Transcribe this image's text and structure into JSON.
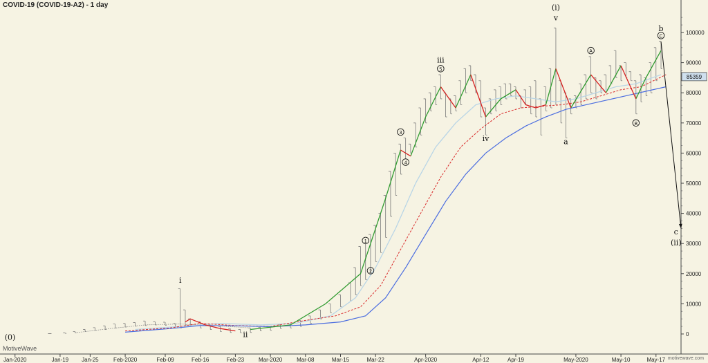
{
  "title": "COVID-19 (COVID-19-A2) - 1 day",
  "brand": "MotiveWave",
  "site": "motivewave.com",
  "price_label": "85359",
  "colors": {
    "background": "#f6f3e3",
    "bar": "#7a7a7a",
    "up_line": "#2f9a2f",
    "down_line": "#d62020",
    "ma_light": "#b9d5e6",
    "ma_dashed": "#d92a2a",
    "ma_blue": "#4b6de0",
    "price_box": "#cfe0ee"
  },
  "chart_data": {
    "type": "line",
    "title": "COVID-19 (COVID-19-A2) - 1 day",
    "ylim": [
      -5000,
      110000
    ],
    "xlim": [
      "2020-01-07",
      "2020-05-22"
    ],
    "yticks": [
      0,
      10000,
      20000,
      30000,
      40000,
      50000,
      60000,
      70000,
      80000,
      90000,
      100000
    ],
    "xticks": [
      {
        "date": "2020-01-10",
        "label": "Jan-2020"
      },
      {
        "date": "2020-01-19",
        "label": "Jan-19"
      },
      {
        "date": "2020-01-25",
        "label": "Jan-25"
      },
      {
        "date": "2020-02-01",
        "label": "Feb-2020"
      },
      {
        "date": "2020-02-09",
        "label": "Feb-09"
      },
      {
        "date": "2020-02-16",
        "label": "Feb-16"
      },
      {
        "date": "2020-02-23",
        "label": "Feb-23"
      },
      {
        "date": "2020-03-01",
        "label": "Mar-2020"
      },
      {
        "date": "2020-03-08",
        "label": "Mar-08"
      },
      {
        "date": "2020-03-15",
        "label": "Mar-15"
      },
      {
        "date": "2020-03-22",
        "label": "Mar-22"
      },
      {
        "date": "2020-04-01",
        "label": "Apr-2020"
      },
      {
        "date": "2020-04-12",
        "label": "Apr-12"
      },
      {
        "date": "2020-04-19",
        "label": "Apr-19"
      },
      {
        "date": "2020-05-01",
        "label": "May-2020"
      },
      {
        "date": "2020-05-10",
        "label": "May-10"
      },
      {
        "date": "2020-05-17",
        "label": "May-17"
      }
    ],
    "bars": [
      [
        "2020-01-17",
        100,
        100
      ],
      [
        "2020-01-20",
        200,
        400
      ],
      [
        "2020-01-22",
        400,
        800
      ],
      [
        "2020-01-24",
        800,
        1500
      ],
      [
        "2020-01-26",
        1200,
        2100
      ],
      [
        "2020-01-28",
        1500,
        2700
      ],
      [
        "2020-01-30",
        2000,
        3300
      ],
      [
        "2020-02-01",
        2300,
        3500
      ],
      [
        "2020-02-03",
        2600,
        3800
      ],
      [
        "2020-02-05",
        2800,
        4300
      ],
      [
        "2020-02-07",
        3000,
        4000
      ],
      [
        "2020-02-09",
        2900,
        3900
      ],
      [
        "2020-02-11",
        2500,
        3500
      ],
      [
        "2020-02-12",
        2000,
        15000
      ],
      [
        "2020-02-13",
        3000,
        8000
      ],
      [
        "2020-02-14",
        2500,
        5000
      ],
      [
        "2020-02-16",
        2000,
        4000
      ],
      [
        "2020-02-18",
        1500,
        3000
      ],
      [
        "2020-02-20",
        800,
        2500
      ],
      [
        "2020-02-22",
        500,
        1800
      ],
      [
        "2020-02-24",
        400,
        1500
      ],
      [
        "2020-02-26",
        500,
        2000
      ],
      [
        "2020-02-28",
        1000,
        2200
      ],
      [
        "2020-03-01",
        1200,
        2500
      ],
      [
        "2020-03-03",
        1800,
        3000
      ],
      [
        "2020-03-05",
        2000,
        3500
      ],
      [
        "2020-03-07",
        2500,
        4500
      ],
      [
        "2020-03-09",
        3500,
        6000
      ],
      [
        "2020-03-11",
        5000,
        8000
      ],
      [
        "2020-03-13",
        7000,
        10000
      ],
      [
        "2020-03-15",
        9000,
        13000
      ],
      [
        "2020-03-17",
        11000,
        17000
      ],
      [
        "2020-03-18",
        13000,
        22000
      ],
      [
        "2020-03-19",
        16000,
        29000
      ],
      [
        "2020-03-20",
        18000,
        30000
      ],
      [
        "2020-03-21",
        20000,
        33000
      ],
      [
        "2020-03-22",
        24000,
        36000
      ],
      [
        "2020-03-23",
        27000,
        40000
      ],
      [
        "2020-03-24",
        32000,
        46000
      ],
      [
        "2020-03-25",
        39000,
        54000
      ],
      [
        "2020-03-26",
        46000,
        60000
      ],
      [
        "2020-03-27",
        53000,
        63000
      ],
      [
        "2020-03-28",
        58000,
        65000
      ],
      [
        "2020-03-29",
        60000,
        63000
      ],
      [
        "2020-03-30",
        62000,
        70000
      ],
      [
        "2020-03-31",
        66000,
        75000
      ],
      [
        "2020-04-01",
        70000,
        78000
      ],
      [
        "2020-04-02",
        74000,
        80000
      ],
      [
        "2020-04-03",
        76000,
        82000
      ],
      [
        "2020-04-04",
        78000,
        86000
      ],
      [
        "2020-04-05",
        72000,
        80000
      ],
      [
        "2020-04-06",
        73000,
        78000
      ],
      [
        "2020-04-07",
        74000,
        79000
      ],
      [
        "2020-04-08",
        76000,
        84000
      ],
      [
        "2020-04-09",
        80000,
        88000
      ],
      [
        "2020-04-10",
        84000,
        89000
      ],
      [
        "2020-04-11",
        80000,
        86000
      ],
      [
        "2020-04-12",
        72000,
        84000
      ],
      [
        "2020-04-13",
        66000,
        75000
      ],
      [
        "2020-04-14",
        73000,
        78000
      ],
      [
        "2020-04-15",
        74000,
        81000
      ],
      [
        "2020-04-16",
        76000,
        82000
      ],
      [
        "2020-04-17",
        78000,
        83000
      ],
      [
        "2020-04-18",
        79000,
        83000
      ],
      [
        "2020-04-19",
        78000,
        82000
      ],
      [
        "2020-04-20",
        75000,
        79000
      ],
      [
        "2020-04-21",
        76000,
        81000
      ],
      [
        "2020-04-22",
        73000,
        82000
      ],
      [
        "2020-04-23",
        72000,
        84000
      ],
      [
        "2020-04-24",
        66000,
        78000
      ],
      [
        "2020-04-25",
        74000,
        82000
      ],
      [
        "2020-04-26",
        75000,
        88000
      ],
      [
        "2020-04-27",
        76000,
        101500
      ],
      [
        "2020-04-28",
        70000,
        84000
      ],
      [
        "2020-04-29",
        65000,
        80000
      ],
      [
        "2020-04-30",
        73000,
        78000
      ],
      [
        "2020-05-01",
        75000,
        79000
      ],
      [
        "2020-05-02",
        76000,
        83000
      ],
      [
        "2020-05-03",
        78000,
        86000
      ],
      [
        "2020-05-04",
        80000,
        92000
      ],
      [
        "2020-05-05",
        78000,
        85000
      ],
      [
        "2020-05-06",
        80000,
        84000
      ],
      [
        "2020-05-07",
        81000,
        86000
      ],
      [
        "2020-05-08",
        83000,
        89000
      ],
      [
        "2020-05-09",
        85000,
        94000
      ],
      [
        "2020-05-10",
        84000,
        89000
      ],
      [
        "2020-05-11",
        85000,
        90000
      ],
      [
        "2020-05-12",
        84000,
        87000
      ],
      [
        "2020-05-13",
        73000,
        84000
      ],
      [
        "2020-05-14",
        77000,
        86000
      ],
      [
        "2020-05-15",
        79000,
        85000
      ],
      [
        "2020-05-16",
        80000,
        90000
      ],
      [
        "2020-05-17",
        84000,
        95000
      ],
      [
        "2020-05-18",
        88000,
        97000
      ]
    ],
    "series": [
      {
        "style": "up",
        "x": [
          "2020-02-26",
          "2020-03-05",
          "2020-03-12",
          "2020-03-19",
          "2020-03-21",
          "2020-03-24",
          "2020-03-27"
        ],
        "y": [
          1500,
          3000,
          10000,
          20000,
          30000,
          45000,
          61000
        ]
      },
      {
        "style": "down",
        "x": [
          "2020-03-27",
          "2020-03-29"
        ],
        "y": [
          61000,
          59000
        ]
      },
      {
        "style": "up",
        "x": [
          "2020-03-29",
          "2020-04-01",
          "2020-04-04"
        ],
        "y": [
          59000,
          72000,
          82000
        ]
      },
      {
        "style": "down",
        "x": [
          "2020-04-04",
          "2020-04-07"
        ],
        "y": [
          82000,
          75000
        ]
      },
      {
        "style": "up",
        "x": [
          "2020-04-07",
          "2020-04-10"
        ],
        "y": [
          75000,
          86000
        ]
      },
      {
        "style": "down",
        "x": [
          "2020-04-10",
          "2020-04-13"
        ],
        "y": [
          86000,
          72000
        ]
      },
      {
        "style": "up",
        "x": [
          "2020-04-13",
          "2020-04-16",
          "2020-04-19"
        ],
        "y": [
          72000,
          78000,
          81000
        ]
      },
      {
        "style": "down",
        "x": [
          "2020-04-19",
          "2020-04-21",
          "2020-04-23",
          "2020-04-25"
        ],
        "y": [
          81000,
          76000,
          75000,
          76000
        ]
      },
      {
        "style": "up",
        "x": [
          "2020-04-25",
          "2020-04-27"
        ],
        "y": [
          76000,
          88000
        ]
      },
      {
        "style": "down",
        "x": [
          "2020-04-27",
          "2020-04-30"
        ],
        "y": [
          88000,
          75000
        ]
      },
      {
        "style": "up",
        "x": [
          "2020-04-30",
          "2020-05-04"
        ],
        "y": [
          75000,
          86000
        ]
      },
      {
        "style": "down",
        "x": [
          "2020-05-04",
          "2020-05-07"
        ],
        "y": [
          86000,
          80000
        ]
      },
      {
        "style": "up",
        "x": [
          "2020-05-07",
          "2020-05-10"
        ],
        "y": [
          80000,
          89000
        ]
      },
      {
        "style": "down",
        "x": [
          "2020-05-10",
          "2020-05-13"
        ],
        "y": [
          89000,
          78000
        ]
      },
      {
        "style": "up",
        "x": [
          "2020-05-13",
          "2020-05-15",
          "2020-05-18"
        ],
        "y": [
          78000,
          85000,
          94000
        ]
      },
      {
        "style": "down",
        "x": [
          "2020-02-13",
          "2020-02-14",
          "2020-02-17",
          "2020-02-20",
          "2020-02-23"
        ],
        "y": [
          4000,
          5000,
          3000,
          1800,
          1000
        ]
      },
      {
        "style": "dotted",
        "x": [
          "2020-01-22",
          "2020-01-29",
          "2020-02-05",
          "2020-02-12",
          "2020-02-19",
          "2020-02-26"
        ],
        "y": [
          400,
          1800,
          3000,
          3300,
          2800,
          2000
        ]
      },
      {
        "style": "ma_light",
        "x": [
          "2020-02-03",
          "2020-02-12",
          "2020-02-20",
          "2020-02-28",
          "2020-03-06",
          "2020-03-13",
          "2020-03-18",
          "2020-03-22",
          "2020-03-26",
          "2020-03-30",
          "2020-04-03",
          "2020-04-07",
          "2020-04-11",
          "2020-04-15",
          "2020-04-19",
          "2020-04-23",
          "2020-04-27",
          "2020-05-01",
          "2020-05-05",
          "2020-05-09",
          "2020-05-13",
          "2020-05-18"
        ],
        "y": [
          1500,
          2500,
          3500,
          3000,
          3500,
          6000,
          12000,
          22000,
          35000,
          50000,
          62000,
          70000,
          76000,
          78000,
          79000,
          78000,
          77000,
          78000,
          80000,
          82000,
          83000,
          86000
        ]
      },
      {
        "style": "ma_dashed",
        "x": [
          "2020-02-01",
          "2020-02-10",
          "2020-02-16",
          "2020-02-23",
          "2020-03-01",
          "2020-03-08",
          "2020-03-14",
          "2020-03-19",
          "2020-03-23",
          "2020-03-27",
          "2020-03-31",
          "2020-04-04",
          "2020-04-08",
          "2020-04-12",
          "2020-04-16",
          "2020-04-20",
          "2020-04-24",
          "2020-04-28",
          "2020-05-02",
          "2020-05-06",
          "2020-05-10",
          "2020-05-14",
          "2020-05-19"
        ],
        "y": [
          1000,
          2000,
          3500,
          2800,
          2500,
          4500,
          6000,
          9000,
          16000,
          28000,
          40000,
          52000,
          62000,
          68000,
          73000,
          75000,
          75500,
          76000,
          77000,
          79000,
          81000,
          82000,
          86000
        ]
      },
      {
        "style": "ma_blue",
        "x": [
          "2020-02-01",
          "2020-02-10",
          "2020-02-16",
          "2020-02-23",
          "2020-03-01",
          "2020-03-08",
          "2020-03-15",
          "2020-03-20",
          "2020-03-24",
          "2020-03-28",
          "2020-04-01",
          "2020-04-05",
          "2020-04-09",
          "2020-04-13",
          "2020-04-17",
          "2020-04-21",
          "2020-04-25",
          "2020-04-29",
          "2020-05-03",
          "2020-05-07",
          "2020-05-11",
          "2020-05-15",
          "2020-05-19"
        ],
        "y": [
          600,
          1800,
          2800,
          2700,
          2400,
          3000,
          4000,
          6000,
          12000,
          22000,
          33000,
          44000,
          53000,
          60000,
          65000,
          69000,
          72000,
          74500,
          76000,
          77500,
          79000,
          80500,
          82000
        ]
      }
    ],
    "annotations": [
      {
        "text": "(0)",
        "x": "2020-01-09",
        "y": -2000
      },
      {
        "text": "i",
        "x": "2020-02-12",
        "y": 17000
      },
      {
        "text": "ii",
        "x": "2020-02-25",
        "y": -1000
      },
      {
        "text": "iii",
        "x": "2020-04-04",
        "y": 90000
      },
      {
        "text": "iv",
        "x": "2020-04-13",
        "y": 64000
      },
      {
        "text": "(i)",
        "x": "2020-04-27",
        "y": 107500
      },
      {
        "text": "v",
        "x": "2020-04-27",
        "y": 104000
      },
      {
        "text": "a",
        "x": "2020-04-29",
        "y": 63000
      },
      {
        "text": "b",
        "x": "2020-05-18",
        "y": 100500
      },
      {
        "text": "c",
        "x": "2020-05-21",
        "y": 33000
      },
      {
        "text": "(ii)",
        "x": "2020-05-21",
        "y": 29500
      }
    ],
    "circled_labels": [
      {
        "text": "1",
        "x": "2020-03-20",
        "y": 31000
      },
      {
        "text": "2",
        "x": "2020-03-21",
        "y": 21000
      },
      {
        "text": "3",
        "x": "2020-03-27",
        "y": 67000
      },
      {
        "text": "4",
        "x": "2020-03-28",
        "y": 57000
      },
      {
        "text": "5",
        "x": "2020-04-04",
        "y": 88000
      },
      {
        "text": "A",
        "x": "2020-05-04",
        "y": 94000
      },
      {
        "text": "B",
        "x": "2020-05-13",
        "y": 70000
      },
      {
        "text": "C",
        "x": "2020-05-18",
        "y": 99000
      }
    ],
    "projection": {
      "from": {
        "x": "2020-05-18",
        "y": 97000
      },
      "to": {
        "x": "2020-05-22",
        "y": 35000
      }
    },
    "last_value": 85359
  }
}
